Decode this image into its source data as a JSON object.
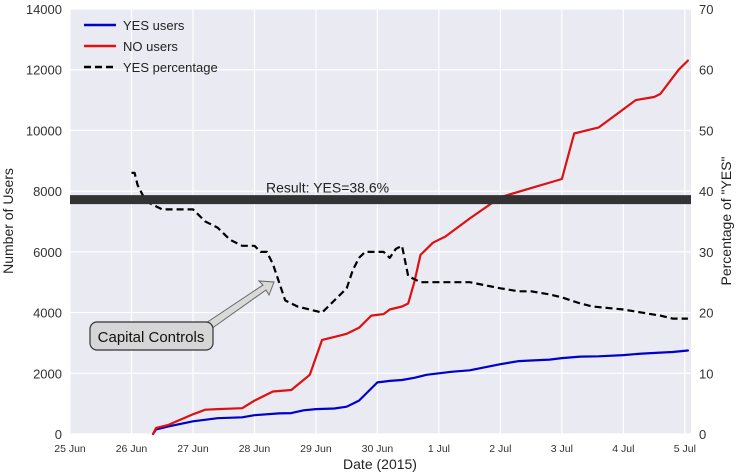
{
  "chart_data": {
    "type": "line",
    "title": "",
    "xlabel": "Date (2015)",
    "ylabel_left": "Number of Users",
    "ylabel_right": "Percentage of \"YES\"",
    "x_ticks": [
      "25 Jun",
      "26 Jun",
      "27 Jun",
      "28 Jun",
      "29 Jun",
      "30 Jun",
      "1 Jul",
      "2 Jul",
      "3 Jul",
      "4 Jul",
      "5 Jul"
    ],
    "xlim": [
      0,
      10.1
    ],
    "ylim_left": [
      0,
      14000
    ],
    "ylim_right": [
      0,
      70
    ],
    "yticks_left": [
      0,
      2000,
      4000,
      6000,
      8000,
      10000,
      12000,
      14000
    ],
    "yticks_right": [
      0,
      10,
      20,
      30,
      40,
      50,
      60,
      70
    ],
    "grid": true,
    "legend_position": "top-left",
    "background": "#eaeaf2",
    "series": [
      {
        "name": "YES users",
        "color": "#0000cc",
        "axis": "left",
        "style": "solid",
        "x": [
          1.35,
          1.4,
          1.6,
          2.0,
          2.4,
          2.8,
          3.0,
          3.4,
          3.6,
          3.8,
          4.0,
          4.3,
          4.5,
          4.7,
          5.0,
          5.2,
          5.4,
          5.6,
          5.8,
          6.0,
          6.2,
          6.5,
          7.0,
          7.3,
          7.5,
          7.8,
          8.0,
          8.3,
          8.6,
          9.0,
          9.3,
          9.6,
          9.8,
          10.05
        ],
        "y": [
          0,
          150,
          250,
          420,
          520,
          550,
          620,
          680,
          690,
          780,
          820,
          840,
          900,
          1100,
          1700,
          1750,
          1780,
          1850,
          1950,
          2000,
          2050,
          2100,
          2300,
          2400,
          2420,
          2450,
          2500,
          2550,
          2560,
          2600,
          2650,
          2680,
          2700,
          2750
        ]
      },
      {
        "name": "NO users",
        "color": "#dd1111",
        "axis": "left",
        "style": "solid",
        "x": [
          1.35,
          1.4,
          1.6,
          2.0,
          2.2,
          2.4,
          2.8,
          3.0,
          3.3,
          3.6,
          3.9,
          4.1,
          4.3,
          4.5,
          4.7,
          4.9,
          5.1,
          5.2,
          5.4,
          5.5,
          5.6,
          5.7,
          5.9,
          6.0,
          6.1,
          6.3,
          6.5,
          7.0,
          7.5,
          8.0,
          8.2,
          8.4,
          8.6,
          9.0,
          9.2,
          9.5,
          9.6,
          9.9,
          10.05
        ],
        "y": [
          0,
          200,
          300,
          650,
          800,
          820,
          850,
          1100,
          1400,
          1450,
          1950,
          3100,
          3200,
          3300,
          3500,
          3900,
          3950,
          4100,
          4200,
          4300,
          5000,
          5900,
          6300,
          6400,
          6500,
          6800,
          7100,
          7800,
          8100,
          8400,
          9900,
          10000,
          10100,
          10700,
          11000,
          11100,
          11200,
          12000,
          12300
        ]
      },
      {
        "name": "YES percentage",
        "color": "#000000",
        "axis": "right",
        "style": "dashed",
        "x": [
          1.0,
          1.05,
          1.1,
          1.2,
          1.3,
          1.5,
          1.8,
          2.0,
          2.2,
          2.4,
          2.6,
          2.8,
          3.0,
          3.1,
          3.2,
          3.3,
          3.5,
          3.7,
          3.9,
          4.1,
          4.2,
          4.3,
          4.4,
          4.5,
          4.6,
          4.7,
          4.8,
          5.0,
          5.1,
          5.2,
          5.3,
          5.4,
          5.5,
          5.7,
          6.0,
          6.5,
          7.0,
          7.3,
          7.5,
          7.8,
          8.0,
          8.3,
          8.5,
          9.0,
          9.3,
          9.6,
          9.8,
          10.0,
          10.05
        ],
        "y": [
          43,
          43,
          41,
          39,
          38,
          37,
          37,
          37,
          35,
          34,
          32,
          31,
          31,
          30,
          30,
          28,
          22,
          21,
          20.5,
          20,
          21,
          22,
          23,
          24,
          27,
          29,
          30,
          30,
          30,
          29,
          30.5,
          31,
          26,
          25,
          25,
          25,
          24,
          23.5,
          23.5,
          23,
          22.5,
          21.5,
          21,
          20.5,
          20,
          19.5,
          19,
          19,
          19
        ]
      }
    ],
    "reference_line": {
      "label": "Result: YES=38.6%",
      "value_right": 38.6,
      "color": "#333333"
    },
    "annotation": {
      "text": "Capital Controls",
      "arrow_to_x": 3.2,
      "arrow_to_percent": 25
    }
  }
}
